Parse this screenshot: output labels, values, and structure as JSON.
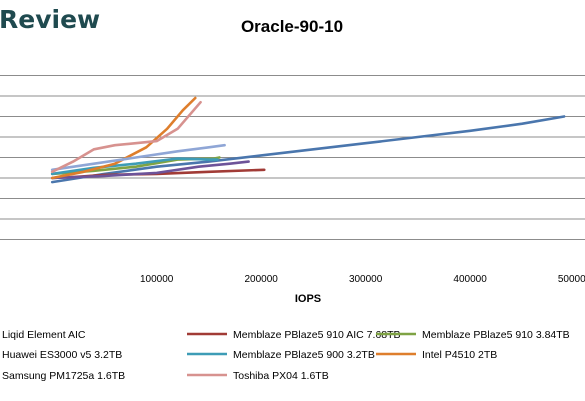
{
  "brand": {
    "text": "Review"
  },
  "chart_data": {
    "type": "line",
    "title": "Oracle-90-10",
    "xlabel": "IOPS",
    "ylabel": "",
    "xlim": [
      -50000,
      510000
    ],
    "ylim": [
      0,
      100
    ],
    "x_ticks": [
      100000,
      200000,
      300000,
      400000,
      500000
    ],
    "x_tick_labels": [
      "100000",
      "200000",
      "300000",
      "400000",
      "500000"
    ],
    "y_ticks": [
      10,
      20,
      30,
      40,
      50,
      60,
      70,
      80,
      90
    ],
    "grid": "horizontal",
    "legend_position": "bottom",
    "series": [
      {
        "name": "Liqid Element AIC",
        "color": "#4a76ad",
        "x": [
          0,
          50000,
          100000,
          150000,
          200000,
          250000,
          300000,
          350000,
          400000,
          450000,
          490000
        ],
        "y": [
          38,
          42,
          45.5,
          48,
          51,
          54,
          57,
          60,
          63,
          66.5,
          70
        ]
      },
      {
        "name": "Memblaze PBlaze5 910 AIC 7.68TB",
        "color": "#a13b36",
        "x": [
          0,
          20000,
          50000,
          100000,
          150000,
          203000
        ],
        "y": [
          40,
          40.5,
          41.5,
          42,
          43,
          44
        ]
      },
      {
        "name": "Memblaze PBlaze5 910 3.84TB",
        "color": "#7fa344",
        "x": [
          0,
          40000,
          80000,
          120000,
          155000,
          160000
        ],
        "y": [
          42,
          43.5,
          45.5,
          49,
          49.5,
          50
        ]
      },
      {
        "name": "Huawei ES3000 v5 3.2TB",
        "color": "#6d5399",
        "x": [
          0,
          50000,
          100000,
          140000,
          170000,
          188000
        ],
        "y": [
          40,
          41,
          42.5,
          45.5,
          47,
          48
        ]
      },
      {
        "name": "Memblaze PBlaze5 900 3.2TB",
        "color": "#3d9cb6",
        "x": [
          0,
          40000,
          80000,
          120000,
          150000,
          158000
        ],
        "y": [
          42,
          45,
          47,
          49.5,
          49,
          49
        ]
      },
      {
        "name": "Intel P4510 2TB",
        "color": "#de7e2c",
        "x": [
          0,
          30000,
          60000,
          90000,
          110000,
          125000,
          137000
        ],
        "y": [
          40,
          43,
          47,
          55,
          64,
          73,
          79
        ]
      },
      {
        "name": "Samsung PM1725a 1.6TB",
        "color": "#8fa6d6",
        "x": [
          0,
          40000,
          80000,
          120000,
          150000,
          165000
        ],
        "y": [
          44,
          47,
          50,
          53,
          55,
          56
        ]
      },
      {
        "name": "Toshiba PX04 1.6TB",
        "color": "#d7928f",
        "x": [
          0,
          20000,
          40000,
          60000,
          80000,
          100000,
          120000,
          142000
        ],
        "y": [
          43,
          48,
          54,
          56,
          57,
          58,
          64,
          77
        ]
      }
    ]
  }
}
